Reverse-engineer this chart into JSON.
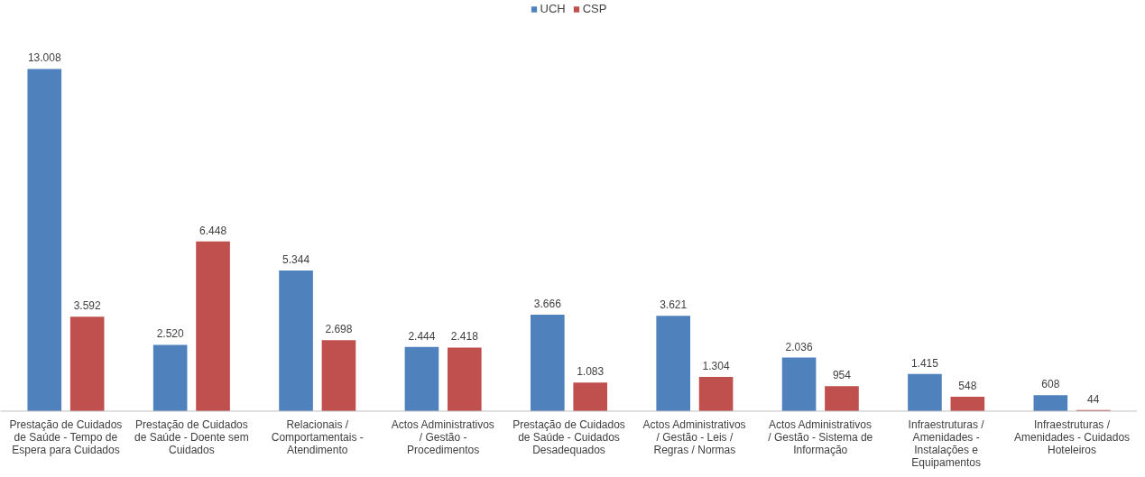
{
  "chart_data": {
    "type": "bar",
    "categories": [
      "Prestação de Cuidados de Saúde - Tempo de Espera para Cuidados",
      "Prestação de Cuidados de Saúde - Doente sem Cuidados",
      "Relacionais / Comportamentais - Atendimento",
      "Actos Administrativos / Gestão - Procedimentos",
      "Prestação de Cuidados de Saúde - Cuidados Desadequados",
      "Actos Administrativos / Gestão - Leis / Regras / Normas",
      "Actos Administrativos / Gestão - Sistema de Informação",
      "Infraestruturas / Amenidades - Instalações e Equipamentos",
      "Infraestruturas / Amenidades - Cuidados Hoteleiros"
    ],
    "series": [
      {
        "name": "UCH",
        "color": "#4f81bd",
        "values": [
          13008,
          2520,
          5344,
          2444,
          3666,
          3621,
          2036,
          1415,
          608
        ],
        "value_labels": [
          "13.008",
          "2.520",
          "5.344",
          "2.444",
          "3.666",
          "3.621",
          "2.036",
          "1.415",
          "608"
        ]
      },
      {
        "name": "CSP",
        "color": "#c0504d",
        "values": [
          3592,
          6448,
          2698,
          2418,
          1083,
          1304,
          954,
          548,
          44
        ],
        "value_labels": [
          "3.592",
          "6.448",
          "2.698",
          "2.418",
          "1.083",
          "1.304",
          "954",
          "548",
          "44"
        ]
      }
    ],
    "legend": "top"
  }
}
